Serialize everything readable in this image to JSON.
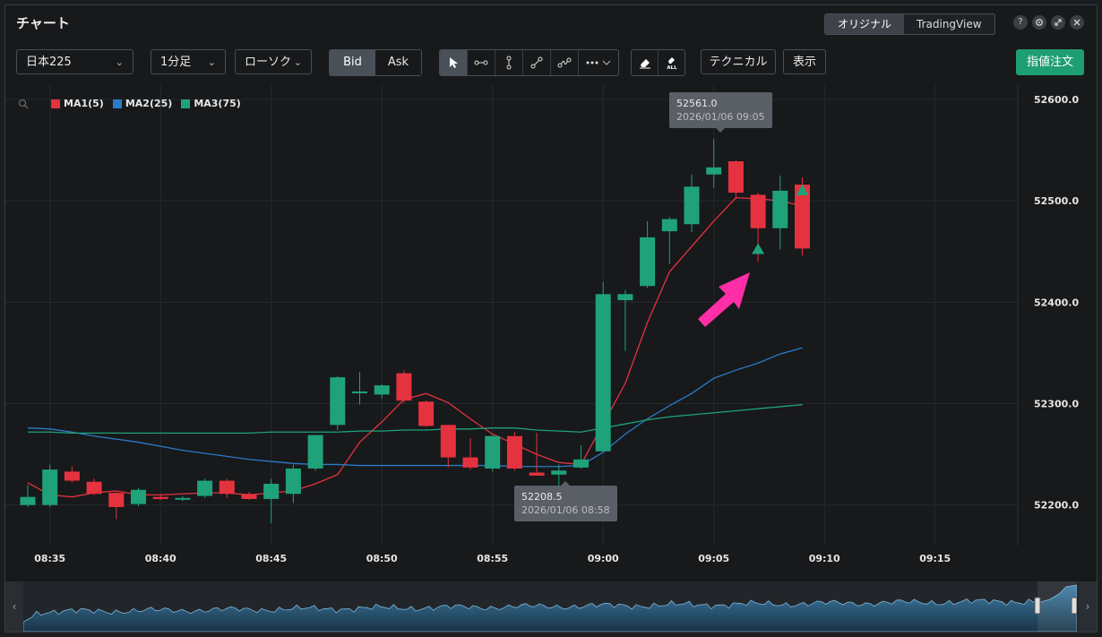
{
  "window": {
    "title": "チャート"
  },
  "header": {
    "tabs": [
      {
        "label": "オリジナル"
      },
      {
        "label": "TradingView"
      }
    ],
    "help_glyph": "?",
    "icons": [
      "help-icon",
      "gear-icon",
      "expand-icon",
      "close-icon"
    ]
  },
  "toolbar": {
    "symbol": "日本225",
    "interval": "1分足",
    "chart_type": "ローソク",
    "price_side": {
      "options": [
        "Bid",
        "Ask"
      ],
      "selected": "Bid"
    },
    "drawing_tools": [
      "cursor-icon",
      "horizontal-line-icon",
      "vertical-line-icon",
      "trend-line-icon",
      "brush-icon",
      "more-icon"
    ],
    "erasers": [
      "eraser-icon",
      "eraser-all-icon"
    ],
    "eraser_all_label": "ALL",
    "technical_label": "テクニカル",
    "display_label": "表示",
    "order_label": "指値注文"
  },
  "legend": [
    {
      "label": "MA1(5)",
      "color": "#e5323f"
    },
    {
      "label": "MA2(25)",
      "color": "#2b7bc9"
    },
    {
      "label": "MA3(75)",
      "color": "#1fa27a"
    }
  ],
  "tooltips": {
    "high": {
      "price": "52561.0",
      "time": "2026/01/06 09:05"
    },
    "low": {
      "price": "52208.5",
      "time": "2026/01/06 08:58"
    }
  },
  "colors": {
    "up": "#1fa27a",
    "down": "#e5323f",
    "annotation_arrow": "#ff2ea6",
    "background": "#17191b"
  },
  "chart_data": {
    "type": "candlestick",
    "interval": "1min",
    "ylim": [
      52160,
      52615
    ],
    "yticks": [
      52200.0,
      52300.0,
      52400.0,
      52500.0,
      52600.0
    ],
    "ytick_labels": [
      "52200.0",
      "52300.0",
      "52400.0",
      "52500.0",
      "52600.0"
    ],
    "xticks": [
      "08:35",
      "08:40",
      "08:45",
      "08:50",
      "08:55",
      "09:00",
      "09:05",
      "09:10",
      "09:15"
    ],
    "grid": true,
    "legend_position": "top-left",
    "candles": [
      {
        "time": "08:34",
        "open": 52200,
        "high": 52220,
        "low": 52198,
        "close": 52208
      },
      {
        "time": "08:35",
        "open": 52200,
        "high": 52240,
        "low": 52198,
        "close": 52235
      },
      {
        "time": "08:36",
        "open": 52233,
        "high": 52238,
        "low": 52222,
        "close": 52224
      },
      {
        "time": "08:37",
        "open": 52223,
        "high": 52226,
        "low": 52210,
        "close": 52211
      },
      {
        "time": "08:38",
        "open": 52212,
        "high": 52213,
        "low": 52186,
        "close": 52198
      },
      {
        "time": "08:39",
        "open": 52201,
        "high": 52217,
        "low": 52199,
        "close": 52215
      },
      {
        "time": "08:40",
        "open": 52208,
        "high": 52211,
        "low": 52205,
        "close": 52206
      },
      {
        "time": "08:41",
        "open": 52206,
        "high": 52209,
        "low": 52204,
        "close": 52207
      },
      {
        "time": "08:42",
        "open": 52209,
        "high": 52226,
        "low": 52207,
        "close": 52224
      },
      {
        "time": "08:43",
        "open": 52224,
        "high": 52226,
        "low": 52207,
        "close": 52211
      },
      {
        "time": "08:44",
        "open": 52211,
        "high": 52213,
        "low": 52205,
        "close": 52206
      },
      {
        "time": "08:45",
        "open": 52206,
        "high": 52226,
        "low": 52182,
        "close": 52221
      },
      {
        "time": "08:46",
        "open": 52211,
        "high": 52240,
        "low": 52202,
        "close": 52236
      },
      {
        "time": "08:47",
        "open": 52236,
        "high": 52269,
        "low": 52234,
        "close": 52269
      },
      {
        "time": "08:48",
        "open": 52279,
        "high": 52327,
        "low": 52274,
        "close": 52326
      },
      {
        "time": "08:49",
        "open": 52311,
        "high": 52331,
        "low": 52299,
        "close": 52312
      },
      {
        "time": "08:50",
        "open": 52309,
        "high": 52319,
        "low": 52305,
        "close": 52318
      },
      {
        "time": "08:51",
        "open": 52330,
        "high": 52333,
        "low": 52301,
        "close": 52303
      },
      {
        "time": "08:52",
        "open": 52302,
        "high": 52303,
        "low": 52277,
        "close": 52278
      },
      {
        "time": "08:53",
        "open": 52279,
        "high": 52279,
        "low": 52237,
        "close": 52247
      },
      {
        "time": "08:54",
        "open": 52247,
        "high": 52266,
        "low": 52235,
        "close": 52237
      },
      {
        "time": "08:55",
        "open": 52236,
        "high": 52269,
        "low": 52233,
        "close": 52268
      },
      {
        "time": "08:56",
        "open": 52268,
        "high": 52272,
        "low": 52234,
        "close": 52236
      },
      {
        "time": "08:57",
        "open": 52232,
        "high": 52271,
        "low": 52230,
        "close": 52229
      },
      {
        "time": "08:58",
        "open": 52230,
        "high": 52240,
        "low": 52208.5,
        "close": 52234
      },
      {
        "time": "08:59",
        "open": 52237,
        "high": 52259,
        "low": 52236,
        "close": 52245
      },
      {
        "time": "09:00",
        "open": 52253,
        "high": 52420,
        "low": 52252,
        "close": 52408
      },
      {
        "time": "09:01",
        "open": 52402,
        "high": 52412,
        "low": 52352,
        "close": 52408
      },
      {
        "time": "09:02",
        "open": 52416,
        "high": 52480,
        "low": 52414,
        "close": 52464
      },
      {
        "time": "09:03",
        "open": 52470,
        "high": 52484,
        "low": 52438,
        "close": 52482
      },
      {
        "time": "09:04",
        "open": 52477,
        "high": 52526,
        "low": 52469,
        "close": 52514
      },
      {
        "time": "09:05",
        "open": 52526,
        "high": 52561,
        "low": 52513,
        "close": 52533
      },
      {
        "time": "09:06",
        "open": 52539,
        "high": 52540,
        "low": 52502,
        "close": 52508
      },
      {
        "time": "09:07",
        "open": 52506,
        "high": 52508,
        "low": 52440,
        "close": 52473
      },
      {
        "time": "09:08",
        "open": 52473,
        "high": 52525,
        "low": 52452,
        "close": 52510
      },
      {
        "time": "09:09",
        "open": 52516,
        "high": 52523,
        "low": 52446,
        "close": 52453
      }
    ],
    "series": [
      {
        "name": "MA1(5)",
        "values": [
          52222,
          52210,
          52208,
          52212,
          52214,
          52210,
          52210,
          52211,
          52212,
          52212,
          52210,
          52212,
          52214,
          52221,
          52230,
          52262,
          52282,
          52304,
          52310,
          52301,
          52285,
          52270,
          52260,
          52250,
          52242,
          52240,
          52280,
          52320,
          52380,
          52430,
          52455,
          52480,
          52503,
          52502,
          52500,
          52495
        ]
      },
      {
        "name": "MA2(25)",
        "values": [
          52276,
          52275,
          52272,
          52268,
          52265,
          52262,
          52258,
          52254,
          52251,
          52248,
          52245,
          52243,
          52241,
          52240,
          52240,
          52239,
          52239,
          52239,
          52239,
          52239,
          52239,
          52239,
          52238,
          52238,
          52238,
          52239,
          52252,
          52270,
          52285,
          52298,
          52310,
          52325,
          52333,
          52340,
          52349,
          52355
        ]
      },
      {
        "name": "MA3(75)",
        "values": [
          52272,
          52272,
          52271,
          52271,
          52271,
          52271,
          52271,
          52271,
          52271,
          52271,
          52271,
          52272,
          52272,
          52272,
          52272,
          52273,
          52273,
          52274,
          52274,
          52275,
          52275,
          52276,
          52276,
          52274,
          52273,
          52272,
          52276,
          52280,
          52284,
          52287,
          52289,
          52291,
          52293,
          52295,
          52297,
          52299
        ]
      }
    ],
    "markers": [
      {
        "time": "09:07",
        "type": "buy-triangle",
        "price": 52452
      },
      {
        "time": "09:09",
        "type": "buy-triangle",
        "price": 52510
      }
    ],
    "navigator": {
      "type": "area"
    }
  }
}
